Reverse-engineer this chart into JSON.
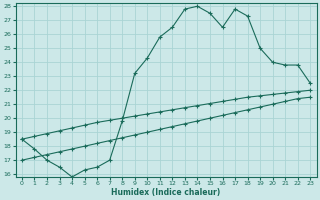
{
  "line1_x": [
    0,
    1,
    2,
    3,
    4,
    5,
    6,
    7,
    8,
    9,
    10,
    11,
    12,
    13,
    14,
    15,
    16,
    17,
    18,
    19,
    20,
    21,
    22,
    23
  ],
  "line1_y": [
    18.5,
    17.8,
    17.0,
    16.5,
    15.8,
    16.3,
    16.5,
    17.0,
    19.8,
    23.2,
    24.3,
    25.8,
    26.5,
    27.8,
    28.0,
    27.5,
    26.5,
    27.8,
    27.3,
    25.0,
    24.0,
    23.8,
    23.8,
    22.5
  ],
  "line2_x": [
    0,
    1,
    2,
    3,
    4,
    5,
    6,
    7,
    8,
    9,
    10,
    11,
    12,
    13,
    14,
    15,
    16,
    17,
    18,
    19,
    20,
    21,
    22,
    23
  ],
  "line2_y": [
    18.5,
    18.7,
    18.9,
    19.1,
    19.3,
    19.5,
    19.7,
    19.85,
    20.0,
    20.15,
    20.3,
    20.45,
    20.6,
    20.75,
    20.9,
    21.05,
    21.2,
    21.35,
    21.5,
    21.6,
    21.7,
    21.8,
    21.9,
    22.0
  ],
  "line3_x": [
    0,
    1,
    2,
    3,
    4,
    5,
    6,
    7,
    8,
    9,
    10,
    11,
    12,
    13,
    14,
    15,
    16,
    17,
    18,
    19,
    20,
    21,
    22,
    23
  ],
  "line3_y": [
    17.0,
    17.2,
    17.4,
    17.6,
    17.8,
    18.0,
    18.2,
    18.4,
    18.6,
    18.8,
    19.0,
    19.2,
    19.4,
    19.6,
    19.8,
    20.0,
    20.2,
    20.4,
    20.6,
    20.8,
    21.0,
    21.2,
    21.4,
    21.5
  ],
  "line_color": "#1a6b5a",
  "bg_color": "#cce8e8",
  "grid_color": "#aad4d4",
  "xlabel": "Humidex (Indice chaleur)",
  "ylim": [
    16,
    28
  ],
  "xlim": [
    -0.5,
    23.5
  ],
  "yticks": [
    16,
    17,
    18,
    19,
    20,
    21,
    22,
    23,
    24,
    25,
    26,
    27,
    28
  ],
  "xticks": [
    0,
    1,
    2,
    3,
    4,
    5,
    6,
    7,
    8,
    9,
    10,
    11,
    12,
    13,
    14,
    15,
    16,
    17,
    18,
    19,
    20,
    21,
    22,
    23
  ]
}
